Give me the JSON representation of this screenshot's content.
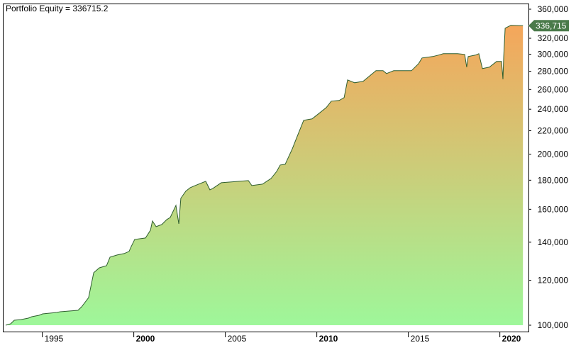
{
  "chart_data": {
    "type": "area",
    "title": "Portfolio Equity = 336715.2",
    "x": [
      1993.0,
      1993.27,
      1993.47,
      1993.85,
      1994.24,
      1994.43,
      1994.82,
      1995.02,
      1995.79,
      1995.98,
      1996.95,
      1997.15,
      1997.53,
      1997.81,
      1998.12,
      1998.51,
      1998.7,
      1999.09,
      1999.47,
      1999.74,
      1999.86,
      2000.05,
      2000.64,
      2000.91,
      2001.02,
      2001.22,
      2001.53,
      2001.8,
      2001.99,
      2002.3,
      2002.46,
      2002.57,
      2002.84,
      2003.08,
      2003.35,
      2003.93,
      2004.16,
      2004.32,
      2004.78,
      2006.26,
      2006.45,
      2007.03,
      2007.5,
      2007.81,
      2008.0,
      2008.27,
      2008.66,
      2008.89,
      2009.28,
      2009.74,
      2010.13,
      2010.52,
      2010.79,
      2011.22,
      2011.49,
      2011.68,
      2012.07,
      2012.53,
      2013.23,
      2013.62,
      2013.81,
      2014.2,
      2015.17,
      2015.56,
      2015.75,
      2016.33,
      2016.64,
      2016.91,
      2017.69,
      2018.08,
      2018.19,
      2018.27,
      2018.66,
      2018.85,
      2019.05,
      2019.43,
      2019.82,
      2020.09,
      2020.17,
      2020.21,
      2020.29,
      2020.6,
      2021.26
    ],
    "series": [
      {
        "name": "Portfolio Equity",
        "color": "#2f5f2f",
        "fill_top": "#f5a65b",
        "fill_bottom": "#9ef79a",
        "values": [
          100000,
          100576,
          102030,
          102330,
          102910,
          103510,
          104100,
          104710,
          105310,
          105610,
          106220,
          107760,
          111860,
          123700,
          126210,
          127300,
          131770,
          132910,
          133680,
          134840,
          137570,
          141590,
          142400,
          146970,
          152570,
          149090,
          150390,
          153440,
          154770,
          162520,
          150830,
          167270,
          172140,
          174630,
          176150,
          179200,
          173140,
          174130,
          178180,
          179710,
          176150,
          177160,
          181270,
          186560,
          191450,
          192000,
          204510,
          213520,
          229450,
          230770,
          236140,
          241630,
          247950,
          248670,
          251540,
          270280,
          267190,
          268720,
          280550,
          280550,
          277340,
          280550,
          280550,
          288720,
          295440,
          297160,
          298860,
          300600,
          300600,
          299730,
          284620,
          297160,
          298860,
          300600,
          282980,
          284620,
          291250,
          291250,
          271050,
          297160,
          333330,
          337190,
          336715.2
        ],
        "last_label": "336,715",
        "last_label_color": "#4a7a4a"
      }
    ],
    "xlim": [
      1993,
      2021.37
    ],
    "xticks": [
      1995,
      2000,
      2005,
      2010,
      2015,
      2020
    ],
    "ylim": [
      100000,
      360000
    ],
    "log_y": true,
    "yticks": [
      {
        "value": 100000,
        "label": "100,000"
      },
      {
        "value": 120000,
        "label": "120,000"
      },
      {
        "value": 140000,
        "label": "140,000"
      },
      {
        "value": 160000,
        "label": "160,000"
      },
      {
        "value": 180000,
        "label": "180,000"
      },
      {
        "value": 200000,
        "label": "200,000"
      },
      {
        "value": 220000,
        "label": "220,000"
      },
      {
        "value": 240000,
        "label": "240,000"
      },
      {
        "value": 260000,
        "label": "260,000"
      },
      {
        "value": 280000,
        "label": "280,000"
      },
      {
        "value": 300000,
        "label": "300,000"
      },
      {
        "value": 320000,
        "label": "320,000"
      },
      {
        "value": 360000,
        "label": "360,000"
      }
    ]
  }
}
